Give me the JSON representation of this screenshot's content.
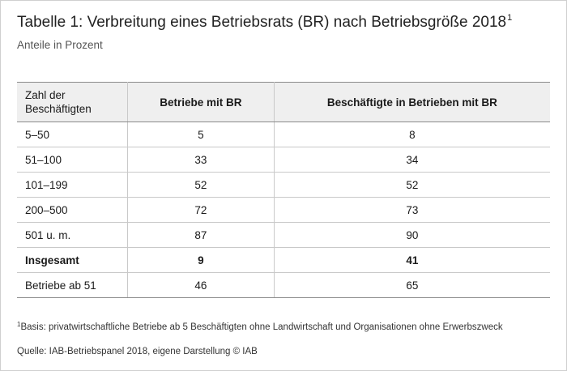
{
  "header": {
    "title": "Tabelle 1: Verbreitung eines Betriebsrats (BR) nach Betriebsgröße 2018",
    "title_footnote_mark": "1",
    "subtitle": "Anteile in Prozent"
  },
  "table": {
    "columns": [
      "Zahl der Beschäftigten",
      "Betriebe mit BR",
      "Beschäftigte in Betrieben mit BR"
    ],
    "rows": [
      {
        "label": "5–50",
        "betriebe": "5",
        "beschaeftigte": "8"
      },
      {
        "label": "51–100",
        "betriebe": "33",
        "beschaeftigte": "34"
      },
      {
        "label": "101–199",
        "betriebe": "52",
        "beschaeftigte": "52"
      },
      {
        "label": "200–500",
        "betriebe": "72",
        "beschaeftigte": "73"
      },
      {
        "label": "501 u. m.",
        "betriebe": "87",
        "beschaeftigte": "90"
      },
      {
        "label": "Insgesamt",
        "betriebe": "9",
        "beschaeftigte": "41"
      },
      {
        "label": "Betriebe ab 51",
        "betriebe": "46",
        "beschaeftigte": "65"
      }
    ]
  },
  "footer": {
    "footnote_mark": "1",
    "footnote": "Basis: privatwirtschaftliche Betriebe ab 5 Beschäftigten ohne Landwirtschaft und Organisationen ohne Erwerbszweck",
    "source": "Quelle: IAB-Betriebspanel 2018, eigene Darstellung © IAB"
  }
}
